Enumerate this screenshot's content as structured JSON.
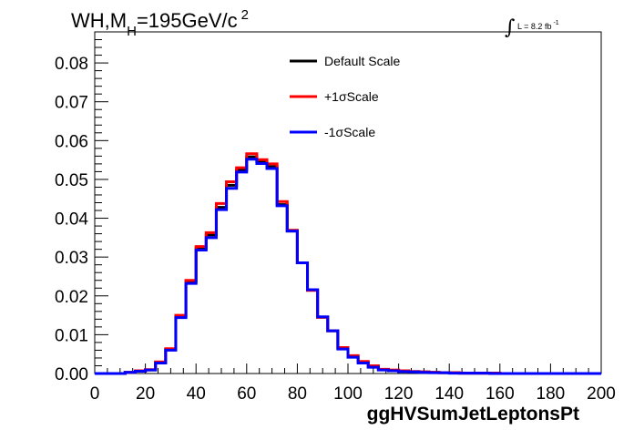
{
  "chart_data": {
    "type": "line",
    "title": {
      "main": "WH,M",
      "subscript": "H",
      "rest": "=195GeV/c",
      "superscript": "2"
    },
    "lumi": {
      "symbol": "∫",
      "text": "L = 8.2 fb",
      "superscript": "-1"
    },
    "xlabel": "ggHVSumJetLeptonsPt",
    "ylabel": "",
    "xlim": [
      0,
      200
    ],
    "ylim": [
      0,
      0.088
    ],
    "x_ticks": [
      0,
      20,
      40,
      60,
      80,
      100,
      120,
      140,
      160,
      180,
      200
    ],
    "x_tick_labels": [
      "0",
      "20",
      "40",
      "60",
      "80",
      "100",
      "120",
      "140",
      "160",
      "180",
      "200"
    ],
    "y_ticks": [
      0,
      0.01,
      0.02,
      0.03,
      0.04,
      0.05,
      0.06,
      0.07,
      0.08
    ],
    "y_tick_labels": [
      "0.00",
      "0.01",
      "0.02",
      "0.03",
      "0.04",
      "0.05",
      "0.06",
      "0.07",
      "0.08"
    ],
    "bin_edges": [
      0,
      4,
      8,
      12,
      16,
      20,
      24,
      28,
      32,
      36,
      40,
      44,
      48,
      52,
      56,
      60,
      64,
      68,
      72,
      76,
      80,
      84,
      88,
      92,
      96,
      100,
      104,
      108,
      112,
      116,
      120,
      124,
      128,
      132,
      136,
      140,
      144,
      148,
      152,
      156,
      160,
      164,
      168,
      172,
      176,
      180,
      184,
      188,
      192,
      196,
      200
    ],
    "series": [
      {
        "name": "Default Scale",
        "color": "#000000",
        "values": [
          0,
          0,
          0,
          0.0003,
          0.0007,
          0.0009,
          0.0028,
          0.0062,
          0.0147,
          0.0236,
          0.0323,
          0.0357,
          0.0428,
          0.0485,
          0.0525,
          0.0558,
          0.0545,
          0.0533,
          0.0435,
          0.0367,
          0.0285,
          0.0215,
          0.0145,
          0.011,
          0.0065,
          0.0044,
          0.003,
          0.0018,
          0.001,
          0.0008,
          0.0006,
          0.0005,
          0.0004,
          0.0003,
          0.0002,
          0.0002,
          0.0001,
          0.0001,
          0.0001,
          0.0001,
          0,
          0,
          0,
          0,
          0,
          0,
          0,
          0,
          0,
          0
        ]
      },
      {
        "name": "+1σScale",
        "color": "#ff0000",
        "values": [
          0,
          0,
          0,
          0.0003,
          0.0007,
          0.001,
          0.003,
          0.0064,
          0.015,
          0.024,
          0.0327,
          0.0363,
          0.0438,
          0.0494,
          0.053,
          0.0566,
          0.0551,
          0.054,
          0.0443,
          0.0369,
          0.0285,
          0.0214,
          0.0145,
          0.011,
          0.0067,
          0.0046,
          0.0031,
          0.002,
          0.0011,
          0.0009,
          0.0007,
          0.0005,
          0.0004,
          0.0003,
          0.0002,
          0.0002,
          0.0001,
          0.0001,
          0.0001,
          0.0001,
          0,
          0,
          0,
          0,
          0,
          0,
          0,
          0,
          0,
          0
        ]
      },
      {
        "name": "-1σScale",
        "color": "#0000ff",
        "values": [
          0,
          0,
          0,
          0.0003,
          0.0006,
          0.0009,
          0.0027,
          0.006,
          0.0144,
          0.0232,
          0.0318,
          0.035,
          0.0422,
          0.0477,
          0.0519,
          0.0552,
          0.0541,
          0.0528,
          0.0432,
          0.0367,
          0.0285,
          0.0216,
          0.0146,
          0.011,
          0.0063,
          0.0042,
          0.0027,
          0.0016,
          0.0009,
          0.0007,
          0.0005,
          0.0004,
          0.0003,
          0.0002,
          0.0002,
          0.0001,
          0.0001,
          0.0001,
          0.0001,
          0,
          0,
          0,
          0,
          0,
          0,
          0,
          0,
          0,
          0,
          0
        ]
      }
    ],
    "legend_position": "top-center"
  }
}
